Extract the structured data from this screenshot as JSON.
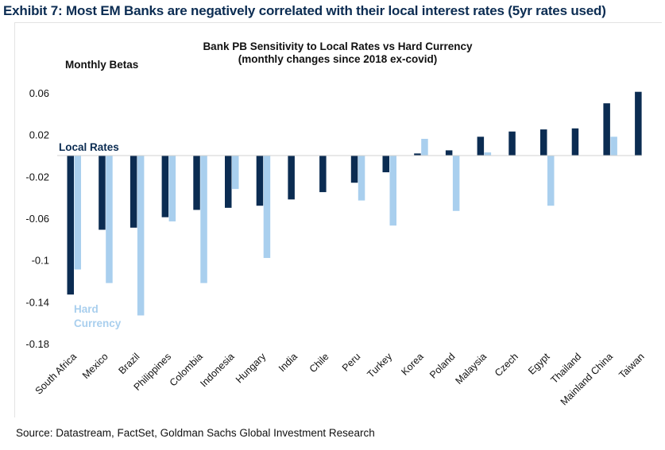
{
  "exhibit_title": "Exhibit 7: Most EM Banks are negatively correlated with their local interest rates (5yr rates used)",
  "source": "Source: Datastream, FactSet, Goldman Sachs Global Investment Research",
  "colors": {
    "local_rates": "#0b2c52",
    "hard_currency": "#a9cfee",
    "title_navy": "#0b2c52"
  },
  "chart_data": {
    "type": "bar",
    "title": "Bank PB Sensitivity to Local Rates vs Hard Currency",
    "subtitle": "(monthly changes since 2018 ex-covid)",
    "ylabel": "Monthly Betas",
    "ylim": [
      -0.18,
      0.06
    ],
    "yticks": [
      0.06,
      0.02,
      -0.02,
      -0.06,
      -0.1,
      -0.14,
      -0.18
    ],
    "ytick_labels": [
      "0.06",
      "0.02",
      "-0.02",
      "-0.06",
      "-0.1",
      "-0.14",
      "-0.18"
    ],
    "categories": [
      "South Africa",
      "Mexico",
      "Brazil",
      "Philippines",
      "Colombia",
      "Indonesia",
      "Hungary",
      "India",
      "Chile",
      "Peru",
      "Turkey",
      "Korea",
      "Poland",
      "Malaysia",
      "Czech",
      "Egypt",
      "Thailand",
      "Mainland China",
      "Taiwan"
    ],
    "series": [
      {
        "name": "Local Rates",
        "values": [
          -0.133,
          -0.071,
          -0.069,
          -0.059,
          -0.052,
          -0.05,
          -0.048,
          -0.042,
          -0.035,
          -0.026,
          -0.016,
          0.002,
          0.005,
          0.018,
          0.023,
          0.025,
          0.026,
          0.05,
          0.061
        ]
      },
      {
        "name": "Hard Currency",
        "values": [
          -0.109,
          -0.122,
          -0.153,
          -0.063,
          -0.122,
          -0.032,
          -0.098,
          null,
          null,
          -0.043,
          -0.067,
          0.016,
          -0.053,
          0.003,
          null,
          -0.048,
          null,
          0.018,
          null
        ]
      }
    ],
    "legend": [
      {
        "label": "Local Rates",
        "placement": "upper-left"
      },
      {
        "label": "Hard",
        "label2": "Currency",
        "placement": "lower-left"
      }
    ],
    "grid": false
  }
}
